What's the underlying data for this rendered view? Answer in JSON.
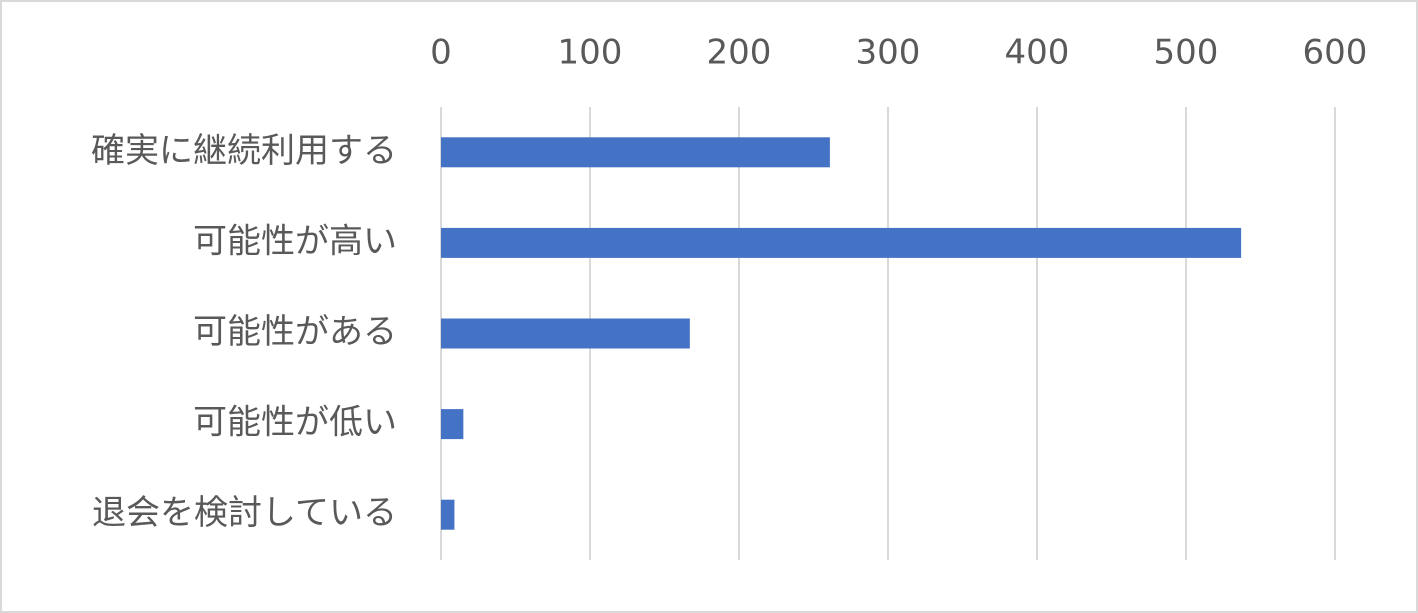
{
  "chart_data": {
    "type": "bar",
    "orientation": "horizontal",
    "categories": [
      "確実に継続利用する",
      "可能性が高い",
      "可能性がある",
      "可能性が低い",
      "退会を検討している"
    ],
    "values": [
      261,
      537,
      167,
      15,
      9
    ],
    "color": "#4472c4",
    "xlim": [
      0,
      600
    ],
    "xticks": [
      0,
      100,
      200,
      300,
      400,
      500,
      600
    ],
    "grid": true
  }
}
